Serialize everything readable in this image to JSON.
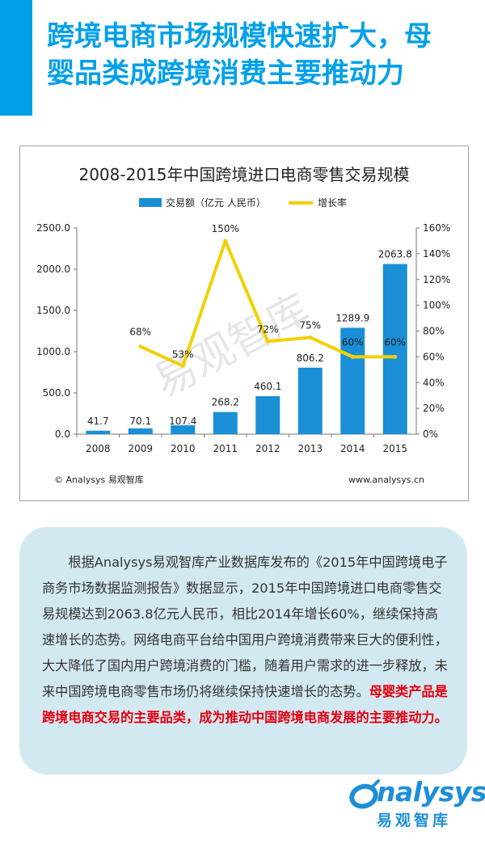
{
  "header": {
    "title_line1": "跨境电商市场规模快速扩大，母",
    "title_line2": "婴品类成跨境消费主要推动力"
  },
  "colors": {
    "accent": "#00a0e9",
    "bar": "#1b8fd6",
    "line": "#f2d100",
    "highlight": "#e60012",
    "panel": "#d3e9f1"
  },
  "chart_data": {
    "type": "bar",
    "title": "2008-2015年中国跨境进口电商零售交易规模",
    "categories": [
      "2008",
      "2009",
      "2010",
      "2011",
      "2012",
      "2013",
      "2014",
      "2015"
    ],
    "series": [
      {
        "name": "交易额（亿元 人民币）",
        "type": "bar",
        "axis": "left",
        "values": [
          41.7,
          70.1,
          107.4,
          268.2,
          460.1,
          806.2,
          1289.9,
          2063.8
        ],
        "labels": [
          "41.7",
          "70.1",
          "107.4",
          "268.2",
          "460.1",
          "806.2",
          "1289.9",
          "2063.8"
        ]
      },
      {
        "name": "增长率",
        "type": "line",
        "axis": "right",
        "values": [
          null,
          68,
          53,
          150,
          72,
          75,
          60,
          60
        ],
        "labels": [
          "",
          "68%",
          "53%",
          "150%",
          "72%",
          "75%",
          "60%",
          "60%"
        ]
      }
    ],
    "left_axis": {
      "min": 0,
      "max": 2500,
      "ticks": [
        "0.0",
        "500.0",
        "1000.0",
        "1500.0",
        "2000.0",
        "2500.0"
      ]
    },
    "right_axis": {
      "min": 0,
      "max": 160,
      "ticks": [
        "0%",
        "20%",
        "40%",
        "60%",
        "80%",
        "100%",
        "120%",
        "140%",
        "160%"
      ]
    },
    "legend": "top",
    "grid": false,
    "watermark": "易观智库",
    "footer_left": "© Analysys 易观智库",
    "footer_right": "www.analysys.cn"
  },
  "body_text": {
    "normal": "根据Analysys易观智库产业数据库发布的《2015年中国跨境电子商务市场数据监测报告》数据显示，2015年中国跨境进口电商零售交易规模达到2063.8亿元人民币，相比2014年增长60%，继续保持高速增长的态势。网络电商平台给中国用户跨境消费带来巨大的便利性，大大降低了国内用户跨境消费的门槛，随着用户需求的进一步释放，未来中国跨境电商零售市场仍将继续保持快速增长的态势。",
    "highlight": "母婴类产品是跨境电商交易的主要品类，成为推动中国跨境电商发展的主要推动力。"
  },
  "logo": {
    "word": "nalysys",
    "cn": "易观智库"
  }
}
